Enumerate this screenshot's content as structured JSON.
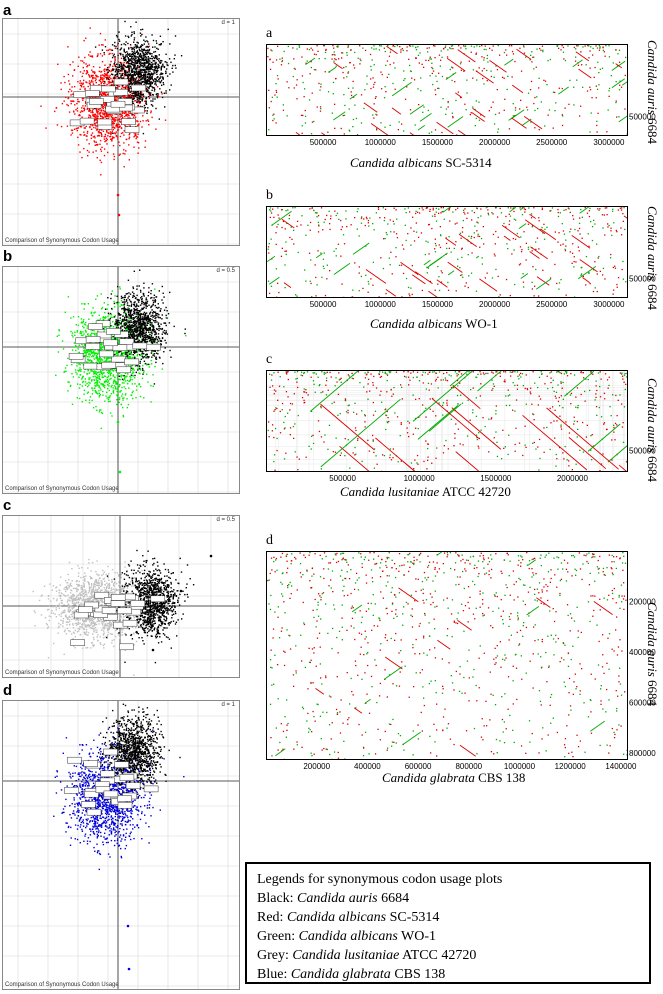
{
  "coa_panels": [
    {
      "letter": "a",
      "d": "d = 1",
      "caption": "Comparison of Synonymous Codon Usage",
      "colors": [
        "#ff0000",
        "#000000"
      ]
    },
    {
      "letter": "b",
      "d": "d = 0.5",
      "caption": "Comparison of Synonymous Codon Usage",
      "colors": [
        "#00ee00",
        "#000000"
      ]
    },
    {
      "letter": "c",
      "d": "d = 0.5",
      "caption": "Comparison of Synonymous Codon Usage",
      "colors": [
        "#c0c0c0",
        "#000000"
      ]
    },
    {
      "letter": "d",
      "d": "d = 1",
      "caption": "Comparison of Synonymous Codon Usage",
      "colors": [
        "#0000dd",
        "#000000"
      ]
    }
  ],
  "dot_panels": [
    {
      "letter": "a",
      "x_species": "Candida albicans",
      "x_strain": "SC-5314",
      "y_species": "Candida auris",
      "y_strain": "6684",
      "xticks": [
        "500000",
        "1000000",
        "1500000",
        "2000000",
        "2500000",
        "3000000"
      ],
      "yticks": [
        "500000"
      ]
    },
    {
      "letter": "b",
      "x_species": "Candida albicans",
      "x_strain": "WO-1",
      "y_species": "Candida auris",
      "y_strain": "6684",
      "xticks": [
        "500000",
        "1000000",
        "1500000",
        "2000000",
        "2500000",
        "3000000"
      ],
      "yticks": [
        "500000"
      ]
    },
    {
      "letter": "c",
      "x_species": "Candida lusitaniae",
      "x_strain": "ATCC 42720",
      "y_species": "Candida auris",
      "y_strain": "6684",
      "xticks": [
        "500000",
        "1000000",
        "1500000",
        "2000000"
      ],
      "yticks": [
        "500000"
      ]
    },
    {
      "letter": "d",
      "x_species": "Candida glabrata",
      "x_strain": "CBS 138",
      "y_species": "Candida auris",
      "y_strain": "6684",
      "xticks": [
        "200000",
        "400000",
        "600000",
        "800000",
        "1000000",
        "1200000",
        "1400000"
      ],
      "yticks": [
        "200000",
        "400000",
        "600000",
        "800000"
      ]
    }
  ],
  "legend": {
    "title": "Legends for synonymous codon usage plots",
    "items": [
      {
        "color": "Black:",
        "species": "Candida auris",
        "strain": "6684"
      },
      {
        "color": "Red:",
        "species": "Candida albicans",
        "strain": "SC-5314"
      },
      {
        "color": "Green:",
        "species": "Candida albicans",
        "strain": "WO-1"
      },
      {
        "color": "Grey:",
        "species": "Candida lusitaniae",
        "strain": "ATCC 42720"
      },
      {
        "color": "Blue:",
        "species": "Candida glabrata",
        "strain": "CBS 138"
      }
    ]
  },
  "chart_data": [
    {
      "type": "scatter",
      "title": "",
      "xlabel": "",
      "ylabel": "",
      "series": [
        {
          "name": "Candida albicans SC-5314",
          "color": "#ff0000"
        },
        {
          "name": "Candida auris 6684",
          "color": "#000000"
        }
      ],
      "d": "d = 1"
    },
    {
      "type": "scatter",
      "title": "",
      "xlabel": "",
      "ylabel": "",
      "series": [
        {
          "name": "Candida albicans WO-1",
          "color": "#00ee00"
        },
        {
          "name": "Candida auris 6684",
          "color": "#000000"
        }
      ],
      "d": "d = 0.5"
    },
    {
      "type": "scatter",
      "title": "",
      "xlabel": "",
      "ylabel": "",
      "series": [
        {
          "name": "Candida lusitaniae ATCC 42720",
          "color": "#c0c0c0"
        },
        {
          "name": "Candida auris 6684",
          "color": "#000000"
        }
      ],
      "d": "d = 0.5"
    },
    {
      "type": "scatter",
      "title": "",
      "xlabel": "",
      "ylabel": "",
      "series": [
        {
          "name": "Candida glabrata CBS 138",
          "color": "#0000dd"
        },
        {
          "name": "Candida auris 6684",
          "color": "#000000"
        }
      ],
      "d": "d = 1"
    },
    {
      "type": "scatter",
      "title": "",
      "xlabel": "Candida albicans SC-5314",
      "ylabel": "Candida auris 6684",
      "x_ticks": [
        500000,
        1000000,
        1500000,
        2000000,
        2500000,
        3000000
      ],
      "y_ticks": [
        500000
      ]
    },
    {
      "type": "scatter",
      "title": "",
      "xlabel": "Candida albicans WO-1",
      "ylabel": "Candida auris 6684",
      "x_ticks": [
        500000,
        1000000,
        1500000,
        2000000,
        2500000,
        3000000
      ],
      "y_ticks": [
        500000
      ]
    },
    {
      "type": "scatter",
      "title": "",
      "xlabel": "Candida lusitaniae ATCC 42720",
      "ylabel": "Candida auris 6684",
      "x_ticks": [
        500000,
        1000000,
        1500000,
        2000000
      ],
      "y_ticks": [
        500000
      ]
    },
    {
      "type": "scatter",
      "title": "",
      "xlabel": "Candida glabrata CBS 138",
      "ylabel": "Candida auris 6684",
      "x_ticks": [
        200000,
        400000,
        600000,
        800000,
        1000000,
        1200000,
        1400000
      ],
      "y_ticks": [
        200000,
        400000,
        600000,
        800000
      ]
    }
  ]
}
